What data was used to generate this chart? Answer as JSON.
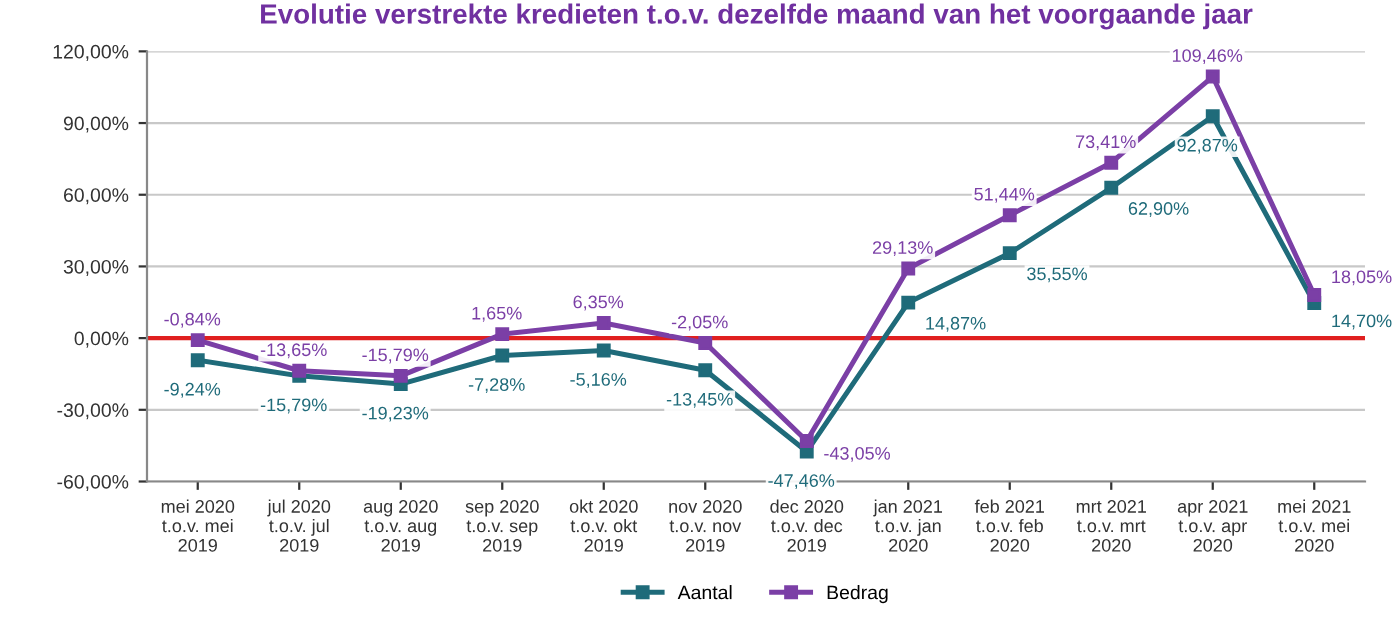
{
  "chart_data": {
    "type": "line",
    "title": "Evolutie verstrekte kredieten t.o.v. dezelfde maand van het voorgaande jaar",
    "categories": [
      "mei 2020\nt.o.v. mei\n2019",
      "jul 2020\nt.o.v. jul\n2019",
      "aug 2020\nt.o.v. aug\n2019",
      "sep 2020\nt.o.v. sep\n2019",
      "okt 2020\nt.o.v. okt\n2019",
      "nov 2020\nt.o.v. nov\n2019",
      "dec 2020\nt.o.v. dec\n2019",
      "jan 2021\nt.o.v. jan\n2020",
      "feb 2021\nt.o.v. feb\n2020",
      "mrt 2021\nt.o.v. mrt\n2020",
      "apr 2021\nt.o.v. apr\n2020",
      "mei 2021\nt.o.v. mei\n2020"
    ],
    "series": [
      {
        "name": "Aantal",
        "color": "#1f6b7a",
        "values": [
          -9.24,
          -15.79,
          -19.23,
          -7.28,
          -5.16,
          -13.45,
          -47.46,
          14.87,
          35.55,
          62.9,
          92.87,
          14.7
        ],
        "value_labels": [
          "-9,24%",
          "-15,79%",
          "-19,23%",
          "-7,28%",
          "-5,16%",
          "-13,45%",
          "-47,46%",
          "14,87%",
          "35,55%",
          "62,90%",
          "92,87%",
          "14,70%"
        ]
      },
      {
        "name": "Bedrag",
        "color": "#7b3fa6",
        "values": [
          -0.84,
          -13.65,
          -15.79,
          1.65,
          6.35,
          -2.05,
          -43.05,
          29.13,
          51.44,
          73.41,
          109.46,
          18.05
        ],
        "value_labels": [
          "-0,84%",
          "-13,65%",
          "-15,79%",
          "1,65%",
          "6,35%",
          "-2,05%",
          "-43,05%",
          "29,13%",
          "51,44%",
          "73,41%",
          "109,46%",
          "18,05%"
        ]
      }
    ],
    "ylim": [
      -60,
      120
    ],
    "yticks": [
      {
        "value": -60,
        "label": "-60,00%"
      },
      {
        "value": -30,
        "label": "-30,00%"
      },
      {
        "value": 0,
        "label": "0,00%"
      },
      {
        "value": 30,
        "label": "30,00%"
      },
      {
        "value": 60,
        "label": "60,00%"
      },
      {
        "value": 90,
        "label": "90,00%"
      },
      {
        "value": 120,
        "label": "120,00%"
      }
    ],
    "ref_lines": [
      {
        "axis": "y",
        "value": 0,
        "color": "#e02020"
      }
    ],
    "grid": "y",
    "legend": "bottom",
    "marker": "square",
    "line_style": "solid"
  }
}
